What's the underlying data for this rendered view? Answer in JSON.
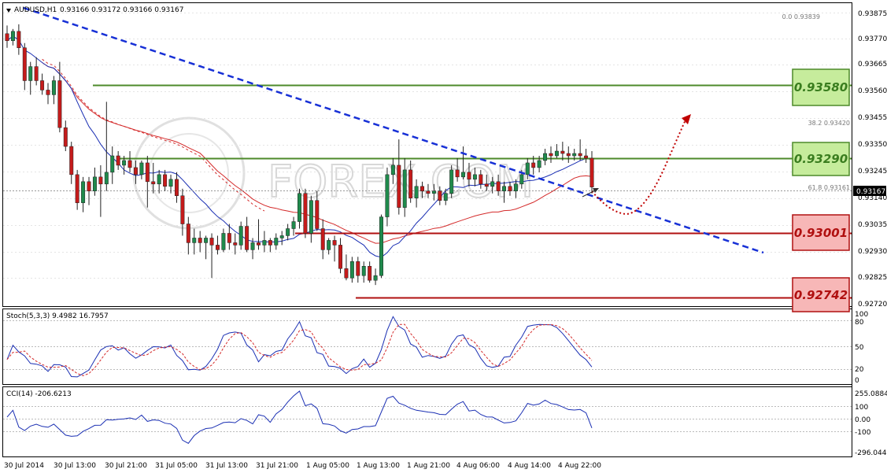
{
  "header": {
    "symbol": "AUDUSD,H1",
    "ohlc": "0.93166 0.93172 0.93166 0.93167"
  },
  "watermark": "FOREX.COM",
  "price_axis": {
    "ticks": [
      "0.93875",
      "0.93770",
      "0.93665",
      "0.93560",
      "0.93455",
      "0.93350",
      "0.93245",
      "0.93140",
      "0.93035",
      "0.92930",
      "0.92825",
      "0.92720"
    ],
    "current_price": "0.93167"
  },
  "time_axis": {
    "labels": [
      "30 Jul 2014",
      "30 Jul 13:00",
      "30 Jul 21:00",
      "31 Jul 05:00",
      "31 Jul 13:00",
      "31 Jul 21:00",
      "1 Aug 05:00",
      "1 Aug 13:00",
      "1 Aug 21:00",
      "4 Aug 06:00",
      "4 Aug 14:00",
      "4 Aug 22:00"
    ]
  },
  "fib_labels": [
    "0.0  0.93839",
    "38.2  0.93420",
    "61.8  0.93161"
  ],
  "levels": [
    {
      "label": "0.93580",
      "color": "#3a7d1f",
      "fill": "#c6ec9c",
      "border": "#4d8a2a"
    },
    {
      "label": "0.93290",
      "color": "#3a7d1f",
      "fill": "#c6ec9c",
      "border": "#4d8a2a"
    },
    {
      "label": "0.93001",
      "color": "#b01010",
      "fill": "#f7b7b7",
      "border": "#b01010"
    },
    {
      "label": "0.92742",
      "color": "#b01010",
      "fill": "#f7b7b7",
      "border": "#b01010"
    }
  ],
  "stoch": {
    "label": "Stoch(5,3,3) 9.4982 16.7957",
    "ticks": [
      "100",
      "80",
      "50",
      "20",
      "0"
    ]
  },
  "cci": {
    "label": "CCI(14) -206.6213",
    "ticks": [
      "255.0884",
      "100",
      "0.00",
      "-100",
      "-296.0442"
    ]
  },
  "colors": {
    "bull": "#1f8a4c",
    "bear": "#c51b1b",
    "trend": "#1730d6",
    "ma_fast": "#1a2fb3",
    "ma_slow": "#d42a2a"
  },
  "chart_data": {
    "type": "candlestick",
    "timeframe": "H1",
    "symbol": "AUDUSD",
    "ylim": [
      0.9266,
      0.9395
    ],
    "candles": [
      [
        0.9382,
        0.93855,
        0.9376,
        0.9379
      ],
      [
        0.9379,
        0.9384,
        0.9377,
        0.9383
      ],
      [
        0.9383,
        0.9386,
        0.9373,
        0.9376
      ],
      [
        0.9376,
        0.9378,
        0.9358,
        0.9362
      ],
      [
        0.9362,
        0.937,
        0.9356,
        0.9368
      ],
      [
        0.9368,
        0.9372,
        0.936,
        0.9362
      ],
      [
        0.9362,
        0.9365,
        0.9356,
        0.9358
      ],
      [
        0.9358,
        0.9361,
        0.9352,
        0.9356
      ],
      [
        0.9356,
        0.9364,
        0.9352,
        0.9362
      ],
      [
        0.9362,
        0.937,
        0.934,
        0.9342
      ],
      [
        0.9342,
        0.9345,
        0.9332,
        0.9334
      ],
      [
        0.9334,
        0.9336,
        0.9318,
        0.9322
      ],
      [
        0.9322,
        0.9324,
        0.9307,
        0.931
      ],
      [
        0.931,
        0.9321,
        0.9306,
        0.9319
      ],
      [
        0.9319,
        0.9321,
        0.9309,
        0.9315
      ],
      [
        0.9315,
        0.9325,
        0.9313,
        0.9321
      ],
      [
        0.9321,
        0.9326,
        0.9304,
        0.9318
      ],
      [
        0.9318,
        0.9353,
        0.9315,
        0.9323
      ],
      [
        0.9323,
        0.9334,
        0.9318,
        0.933
      ],
      [
        0.933,
        0.9332,
        0.9324,
        0.9326
      ],
      [
        0.9326,
        0.933,
        0.9322,
        0.9328
      ],
      [
        0.9328,
        0.9332,
        0.9323,
        0.9325
      ],
      [
        0.9325,
        0.9328,
        0.9318,
        0.9322
      ],
      [
        0.9322,
        0.9328,
        0.932,
        0.9327
      ],
      [
        0.9327,
        0.933,
        0.9308,
        0.9319
      ],
      [
        0.9319,
        0.9327,
        0.9314,
        0.9318
      ],
      [
        0.9318,
        0.9324,
        0.9314,
        0.9322
      ],
      [
        0.9322,
        0.9324,
        0.9315,
        0.9317
      ],
      [
        0.9317,
        0.9322,
        0.9314,
        0.932
      ],
      [
        0.932,
        0.9323,
        0.931,
        0.9313
      ],
      [
        0.9313,
        0.9316,
        0.9296,
        0.9301
      ],
      [
        0.9301,
        0.9304,
        0.9288,
        0.9293
      ],
      [
        0.9293,
        0.9299,
        0.9288,
        0.9295
      ],
      [
        0.9295,
        0.9298,
        0.9289,
        0.9293
      ],
      [
        0.9293,
        0.9296,
        0.9286,
        0.9295
      ],
      [
        0.9295,
        0.9297,
        0.9278,
        0.9292
      ],
      [
        0.9292,
        0.9296,
        0.9288,
        0.929
      ],
      [
        0.929,
        0.9299,
        0.9289,
        0.9297
      ],
      [
        0.9297,
        0.9301,
        0.929,
        0.9293
      ],
      [
        0.9293,
        0.9297,
        0.9288,
        0.9292
      ],
      [
        0.9292,
        0.9302,
        0.929,
        0.93
      ],
      [
        0.93,
        0.9304,
        0.9289,
        0.929
      ],
      [
        0.929,
        0.9295,
        0.9286,
        0.9293
      ],
      [
        0.9293,
        0.9303,
        0.929,
        0.9292
      ],
      [
        0.9292,
        0.9298,
        0.9289,
        0.9294
      ],
      [
        0.9294,
        0.9295,
        0.9289,
        0.9292
      ],
      [
        0.9292,
        0.9297,
        0.929,
        0.9295
      ],
      [
        0.9295,
        0.9298,
        0.9292,
        0.9296
      ],
      [
        0.9296,
        0.9301,
        0.9294,
        0.9299
      ],
      [
        0.9299,
        0.9304,
        0.9296,
        0.9302
      ],
      [
        0.9302,
        0.9316,
        0.9299,
        0.9314
      ],
      [
        0.9314,
        0.9316,
        0.9295,
        0.9297
      ],
      [
        0.9297,
        0.9313,
        0.9293,
        0.9311
      ],
      [
        0.9311,
        0.9315,
        0.9298,
        0.9299
      ],
      [
        0.9299,
        0.9303,
        0.9286,
        0.929
      ],
      [
        0.929,
        0.9295,
        0.9288,
        0.9294
      ],
      [
        0.9294,
        0.9296,
        0.9285,
        0.9292
      ],
      [
        0.9292,
        0.9295,
        0.928,
        0.9282
      ],
      [
        0.9282,
        0.9288,
        0.9277,
        0.9278
      ],
      [
        0.9278,
        0.9287,
        0.9276,
        0.9285
      ],
      [
        0.9285,
        0.9287,
        0.9276,
        0.9279
      ],
      [
        0.9279,
        0.9285,
        0.9276,
        0.9283
      ],
      [
        0.9283,
        0.9285,
        0.9276,
        0.9277
      ],
      [
        0.9277,
        0.9282,
        0.9275,
        0.9279
      ],
      [
        0.9279,
        0.9305,
        0.9278,
        0.9304
      ],
      [
        0.9304,
        0.9325,
        0.93,
        0.9322
      ],
      [
        0.9322,
        0.9329,
        0.9318,
        0.9326
      ],
      [
        0.9326,
        0.9337,
        0.9305,
        0.9308
      ],
      [
        0.9308,
        0.9329,
        0.9304,
        0.9324
      ],
      [
        0.9324,
        0.9328,
        0.931,
        0.9312
      ],
      [
        0.9312,
        0.932,
        0.9308,
        0.9317
      ],
      [
        0.9317,
        0.9319,
        0.9312,
        0.9315
      ],
      [
        0.9315,
        0.9318,
        0.9312,
        0.9314
      ],
      [
        0.9314,
        0.9318,
        0.9311,
        0.9315
      ],
      [
        0.9315,
        0.9317,
        0.9309,
        0.9311
      ],
      [
        0.9311,
        0.9316,
        0.9309,
        0.9314
      ],
      [
        0.9314,
        0.9326,
        0.9312,
        0.9324
      ],
      [
        0.9324,
        0.9329,
        0.9319,
        0.9321
      ],
      [
        0.9321,
        0.9334,
        0.932,
        0.9323
      ],
      [
        0.9323,
        0.9327,
        0.9317,
        0.932
      ],
      [
        0.932,
        0.9325,
        0.9317,
        0.9322
      ],
      [
        0.9322,
        0.9324,
        0.9316,
        0.9318
      ],
      [
        0.9318,
        0.9322,
        0.9315,
        0.9317
      ],
      [
        0.9317,
        0.9321,
        0.9314,
        0.9319
      ],
      [
        0.9319,
        0.9322,
        0.9313,
        0.9315
      ],
      [
        0.9315,
        0.9319,
        0.931,
        0.9317
      ],
      [
        0.9317,
        0.9319,
        0.9313,
        0.9315
      ],
      [
        0.9315,
        0.932,
        0.9312,
        0.9318
      ],
      [
        0.9318,
        0.9324,
        0.9316,
        0.9322
      ],
      [
        0.9322,
        0.9329,
        0.932,
        0.9327
      ],
      [
        0.9327,
        0.933,
        0.9322,
        0.9325
      ],
      [
        0.9325,
        0.933,
        0.9323,
        0.9328
      ],
      [
        0.9328,
        0.9333,
        0.9326,
        0.9331
      ],
      [
        0.9331,
        0.9334,
        0.9327,
        0.933
      ],
      [
        0.933,
        0.9335,
        0.9329,
        0.9332
      ],
      [
        0.9332,
        0.9336,
        0.9328,
        0.9331
      ],
      [
        0.9331,
        0.9334,
        0.9327,
        0.933
      ],
      [
        0.933,
        0.9333,
        0.9328,
        0.9331
      ],
      [
        0.9331,
        0.9337,
        0.9328,
        0.933
      ],
      [
        0.933,
        0.9333,
        0.9327,
        0.9329
      ],
      [
        0.9329,
        0.9332,
        0.9314,
        0.93167
      ]
    ]
  }
}
